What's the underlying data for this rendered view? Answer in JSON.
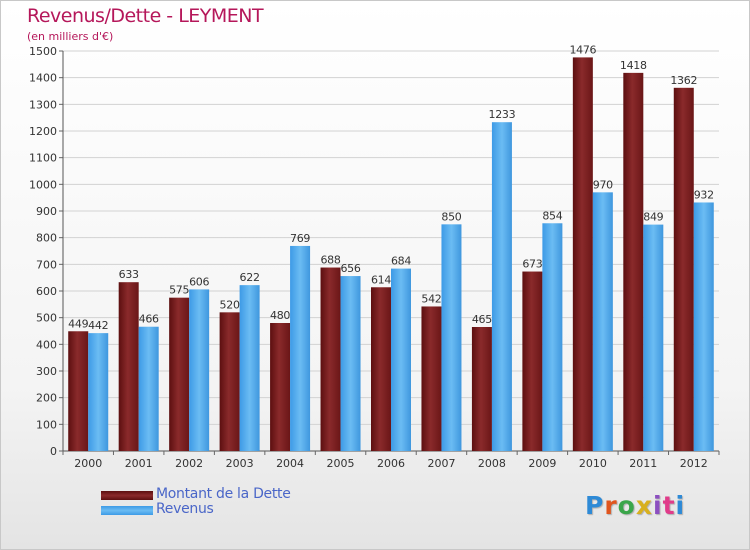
{
  "chart_data": {
    "type": "bar",
    "title": "Revenus/Dette - LEYMENT",
    "subtitle": "(en milliers d'€)",
    "categories": [
      "2000",
      "2001",
      "2002",
      "2003",
      "2004",
      "2005",
      "2006",
      "2007",
      "2008",
      "2009",
      "2010",
      "2011",
      "2012"
    ],
    "series": [
      {
        "name": "Montant de la Dette",
        "values": [
          449,
          633,
          575,
          520,
          480,
          688,
          614,
          542,
          465,
          673,
          1476,
          1418,
          1362
        ],
        "color": "#7a1f1f"
      },
      {
        "name": "Revenus",
        "values": [
          442,
          466,
          606,
          622,
          769,
          656,
          684,
          850,
          1233,
          854,
          970,
          849,
          932
        ],
        "color": "#4da6ea"
      }
    ],
    "ylim": [
      0,
      1500
    ],
    "yticks": [
      0,
      100,
      200,
      300,
      400,
      500,
      600,
      700,
      800,
      900,
      1000,
      1100,
      1200,
      1300,
      1400,
      1500
    ],
    "grid": true,
    "legend": "bottom-left"
  },
  "logo": {
    "text": "Proxiti",
    "letter_colors": [
      "#2e8ad6",
      "#e0551e",
      "#3aa64a",
      "#d8b01f",
      "#8c4fc0",
      "#e03c8a",
      "#2e8ad6"
    ]
  }
}
